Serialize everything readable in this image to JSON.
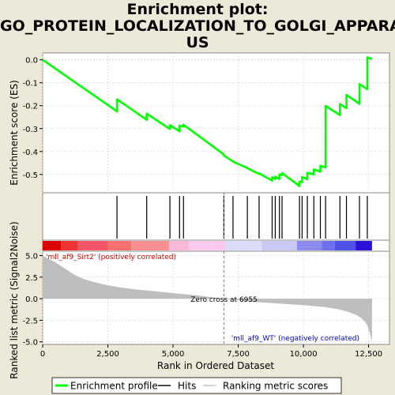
{
  "title_lines": [
    "Enrichment plot:",
    "GO_PROTEIN_LOCALIZATION_TO_GOLGI_APPARAT",
    "US"
  ],
  "chart_data": [
    {
      "type": "line",
      "panel": "enrichment-profile",
      "ylabel": "Enrichment score (ES)",
      "ylim": [
        -0.58,
        0.03
      ],
      "xlim": [
        0,
        13300
      ],
      "yticks": [
        0.0,
        -0.1,
        -0.2,
        -0.3,
        -0.4,
        -0.5
      ],
      "ytick_labels": [
        "0.0",
        "-0.1",
        "-0.2",
        "-0.3",
        "-0.4",
        "-0.5"
      ],
      "grid": true,
      "line_color": "#00FF00",
      "series": [
        {
          "name": "Enrichment profile",
          "x": [
            0,
            2850,
            2850,
            3990,
            3990,
            4880,
            4880,
            5250,
            5250,
            5400,
            5400,
            6950,
            6950,
            7300,
            7300,
            7850,
            7850,
            8300,
            8300,
            8800,
            8800,
            8920,
            8920,
            9080,
            9080,
            9180,
            9180,
            9850,
            9850,
            9950,
            9950,
            10150,
            10150,
            10400,
            10400,
            10650,
            10650,
            10850,
            10850,
            11400,
            11400,
            11650,
            11650,
            12150,
            12150,
            12450,
            12450,
            12630
          ],
          "y": [
            0.0,
            -0.225,
            -0.172,
            -0.262,
            -0.235,
            -0.302,
            -0.285,
            -0.312,
            -0.287,
            -0.291,
            -0.283,
            -0.413,
            -0.418,
            -0.443,
            -0.444,
            -0.472,
            -0.473,
            -0.498,
            -0.495,
            -0.527,
            -0.512,
            -0.52,
            -0.51,
            -0.52,
            -0.5,
            -0.503,
            -0.494,
            -0.551,
            -0.531,
            -0.534,
            -0.511,
            -0.521,
            -0.493,
            -0.5,
            -0.478,
            -0.488,
            -0.462,
            -0.47,
            -0.201,
            -0.241,
            -0.193,
            -0.211,
            -0.153,
            -0.192,
            -0.106,
            -0.128,
            0.011,
            0.003
          ]
        }
      ]
    },
    {
      "type": "scatter",
      "panel": "hits",
      "marker": "vertical-line",
      "series": [
        {
          "name": "Hits",
          "x": [
            2850,
            3990,
            4880,
            5250,
            5400,
            6950,
            7300,
            7850,
            8300,
            8800,
            8920,
            9080,
            9180,
            9850,
            9950,
            10150,
            10400,
            10650,
            10850,
            11400,
            11650,
            12150,
            12450
          ]
        }
      ]
    },
    {
      "type": "heatmap",
      "panel": "ranked-list-colorbar",
      "segments": [
        {
          "start": 0,
          "end": 700,
          "color": "#DD0000"
        },
        {
          "start": 700,
          "end": 1350,
          "color": "#EE3333"
        },
        {
          "start": 1350,
          "end": 2500,
          "color": "#F55566"
        },
        {
          "start": 2500,
          "end": 3400,
          "color": "#F87070"
        },
        {
          "start": 3400,
          "end": 4850,
          "color": "#FA9090"
        },
        {
          "start": 4850,
          "end": 5600,
          "color": "#FCB8D8"
        },
        {
          "start": 5600,
          "end": 7000,
          "color": "#FCC8EC"
        },
        {
          "start": 7000,
          "end": 8400,
          "color": "#DCDCF8"
        },
        {
          "start": 8400,
          "end": 9750,
          "color": "#C8C8F2"
        },
        {
          "start": 9750,
          "end": 10700,
          "color": "#8C8CF0"
        },
        {
          "start": 10700,
          "end": 11200,
          "color": "#6E6EEE"
        },
        {
          "start": 11200,
          "end": 12000,
          "color": "#5050E6"
        },
        {
          "start": 12000,
          "end": 12630,
          "color": "#2A12D6"
        }
      ]
    },
    {
      "type": "area",
      "panel": "ranked-list-metric",
      "ylabel": "Ranked list metric (Signal2Noise)",
      "xlabel": "Rank in Ordered Dataset",
      "ylim": [
        -5.3,
        5.5
      ],
      "xlim": [
        0,
        13300
      ],
      "xticks": [
        0,
        2500,
        5000,
        7500,
        10000,
        12500
      ],
      "xtick_labels": [
        "0",
        "2,500",
        "5,000",
        "7,500",
        "10,000",
        "12,500"
      ],
      "yticks": [
        5.0,
        2.5,
        0.0,
        -2.5,
        -5.0
      ],
      "ytick_labels": [
        "5.0",
        "2.5",
        "0.0",
        "-2.5",
        "-5.0"
      ],
      "grid": true,
      "fill_color": "#BEBEBE",
      "series": [
        {
          "name": "Ranking metric scores",
          "x": [
            0,
            100,
            300,
            500,
            800,
            1200,
            1600,
            2000,
            2500,
            3000,
            3500,
            4000,
            5000,
            6000,
            6955,
            8000,
            9000,
            10000,
            10800,
            11300,
            11700,
            12000,
            12200,
            12350,
            12450,
            12550,
            12630
          ],
          "y": [
            5.0,
            4.8,
            4.5,
            4.2,
            3.6,
            2.8,
            2.25,
            1.9,
            1.55,
            1.3,
            1.1,
            0.95,
            0.65,
            0.35,
            0.0,
            -0.35,
            -0.55,
            -0.75,
            -0.95,
            -1.2,
            -1.5,
            -1.85,
            -2.2,
            -2.6,
            -3.1,
            -4.0,
            -5.0
          ]
        }
      ],
      "zero_cross_rank": 6955,
      "annotations": {
        "positive": "'mll_af9_Sirt2' (positively correlated)",
        "negative": "'mll_af9_WT' (negatively correlated)",
        "zero_cross": "Zero cross at 6955"
      }
    }
  ],
  "legend": {
    "placement": "bottom",
    "items": [
      {
        "label": "Enrichment profile",
        "color": "#00FF00"
      },
      {
        "label": "Hits",
        "color": "#000000"
      },
      {
        "label": "Ranking metric scores",
        "color": "#BEBEBE"
      }
    ]
  }
}
